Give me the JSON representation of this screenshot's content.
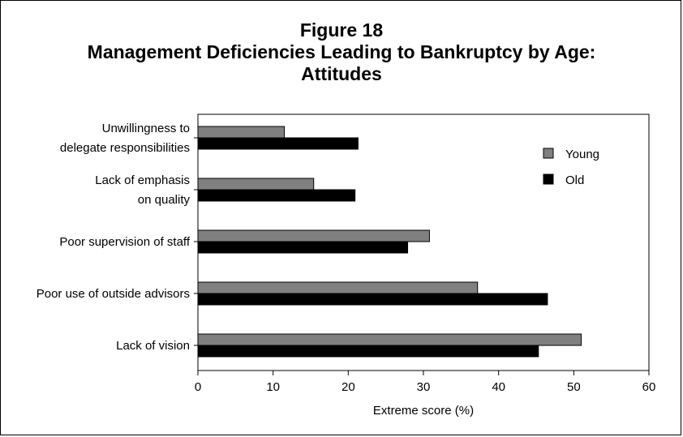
{
  "title_lines": [
    "Figure 18",
    "Management Deficiencies Leading to Bankruptcy by Age:",
    "Attitudes"
  ],
  "chart_data": {
    "type": "bar",
    "orientation": "horizontal",
    "title": "Figure 18 Management Deficiencies Leading to Bankruptcy by Age: Attitudes",
    "categories": [
      [
        "Unwillingness to",
        "delegate responsibilities"
      ],
      [
        "Lack of emphasis",
        "on quality"
      ],
      [
        "Poor supervision of staff"
      ],
      [
        "Poor use of outside advisors"
      ],
      [
        "Lack of vision"
      ]
    ],
    "series": [
      {
        "name": "Young",
        "color": "#808080",
        "values": [
          11.5,
          15.4,
          30.8,
          37.2,
          51.0
        ]
      },
      {
        "name": "Old",
        "color": "#000000",
        "values": [
          21.3,
          20.9,
          27.9,
          46.5,
          45.3
        ]
      }
    ],
    "xlabel": "Extreme score (%)",
    "xlim": [
      0,
      60
    ],
    "xticks": [
      "0",
      "10",
      "20",
      "30",
      "40",
      "50",
      "60"
    ],
    "grid": false,
    "legend_position": "top-right"
  }
}
